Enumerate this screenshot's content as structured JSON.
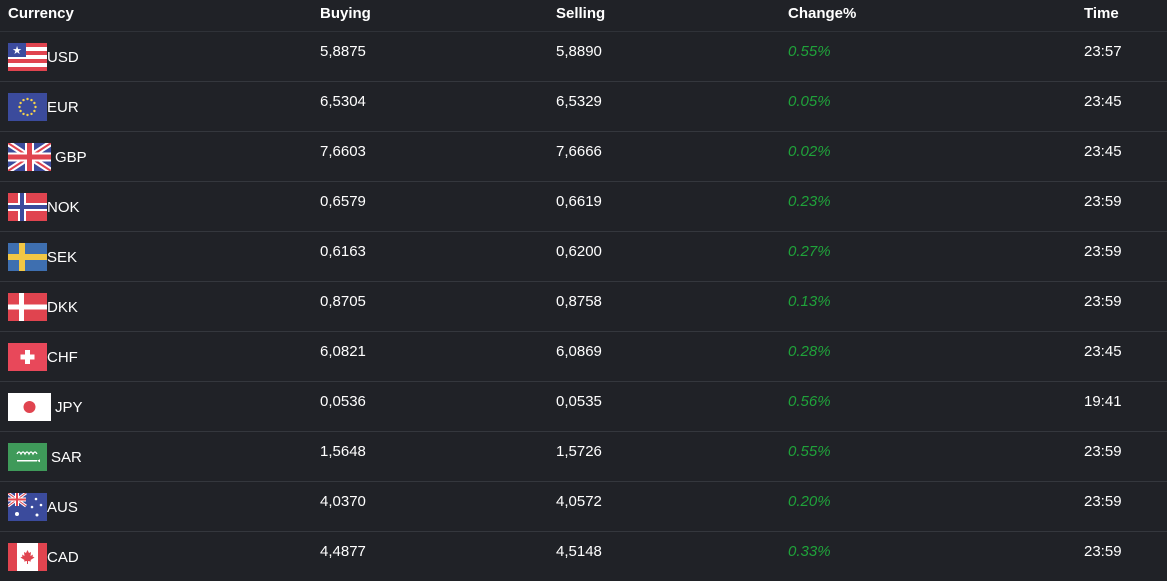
{
  "headers": {
    "currency": "Currency",
    "buying": "Buying",
    "selling": "Selling",
    "change": "Change%",
    "time": "Time"
  },
  "colors": {
    "background": "#202227",
    "positive": "#1fa33a",
    "text": "#ffffff"
  },
  "rows": [
    {
      "code": "USD",
      "flag": "us-flag-icon",
      "buying": "5,8875",
      "selling": "5,8890",
      "change": "0.55%",
      "time": "23:57"
    },
    {
      "code": "EUR",
      "flag": "eu-flag-icon",
      "buying": "6,5304",
      "selling": "6,5329",
      "change": "0.05%",
      "time": "23:45"
    },
    {
      "code": "GBP",
      "flag": "gb-flag-icon",
      "buying": "7,6603",
      "selling": "7,6666",
      "change": "0.02%",
      "time": "23:45"
    },
    {
      "code": "NOK",
      "flag": "no-flag-icon",
      "buying": "0,6579",
      "selling": "0,6619",
      "change": "0.23%",
      "time": "23:59"
    },
    {
      "code": "SEK",
      "flag": "se-flag-icon",
      "buying": "0,6163",
      "selling": "0,6200",
      "change": "0.27%",
      "time": "23:59"
    },
    {
      "code": "DKK",
      "flag": "dk-flag-icon",
      "buying": "0,8705",
      "selling": "0,8758",
      "change": "0.13%",
      "time": "23:59"
    },
    {
      "code": "CHF",
      "flag": "ch-flag-icon",
      "buying": "6,0821",
      "selling": "6,0869",
      "change": "0.28%",
      "time": "23:45"
    },
    {
      "code": "JPY",
      "flag": "jp-flag-icon",
      "buying": "0,0536",
      "selling": "0,0535",
      "change": "0.56%",
      "time": "19:41"
    },
    {
      "code": "SAR",
      "flag": "sa-flag-icon",
      "buying": "1,5648",
      "selling": "1,5726",
      "change": "0.55%",
      "time": "23:59"
    },
    {
      "code": "AUS",
      "flag": "au-flag-icon",
      "buying": "4,0370",
      "selling": "4,0572",
      "change": "0.20%",
      "time": "23:59"
    },
    {
      "code": "CAD",
      "flag": "ca-flag-icon",
      "buying": "4,4877",
      "selling": "4,5148",
      "change": "0.33%",
      "time": "23:59"
    }
  ]
}
